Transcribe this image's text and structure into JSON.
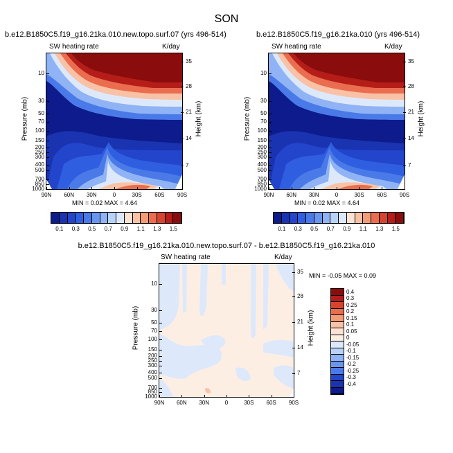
{
  "figure": {
    "title": "SON"
  },
  "panels": [
    {
      "title": "b.e12.B1850C5.f19_g16.21ka.010.new.topo.surf.07 (yrs 496-514)",
      "left_label": "SW heating rate",
      "right_label": "K/day",
      "ylabel": "Pressure (mb)",
      "y2label": "Height (km)",
      "minmax": "MIN =   0.02  MAX =   4.64"
    },
    {
      "title": "b.e12.B1850C5.f19_g16.21ka.010 (yrs 496-514)",
      "left_label": "SW heating rate",
      "right_label": "K/day",
      "ylabel": "Pressure (mb)",
      "y2label": "Height (km)",
      "minmax": "MIN =   0.02  MAX =   4.64"
    },
    {
      "title": "b.e12.B1850C5.f19_g16.21ka.010.new.topo.surf.07 - b.e12.B1850C5.f19_g16.21ka.010",
      "left_label": "SW heating rate",
      "right_label": "K/day",
      "ylabel": "Pressure (mb)",
      "y2label": "Height (km)",
      "minmax": "MIN =  -0.05  MAX =   0.09"
    }
  ],
  "chart_data": [
    {
      "type": "heatmap",
      "panel": "top-left",
      "x_ticks": [
        "90N",
        "60N",
        "30N",
        "0",
        "30S",
        "60S",
        "90S"
      ],
      "y_ticks_pressure": [
        "10",
        "30",
        "50",
        "70",
        "100",
        "150",
        "200",
        "250",
        "300",
        "400",
        "500",
        "700",
        "850",
        "1000"
      ],
      "y_ticks_height": [
        "35",
        "28",
        "21",
        "14",
        "7"
      ],
      "colorbar_levels": [
        0.1,
        0.2,
        0.3,
        0.4,
        0.5,
        0.6,
        0.7,
        0.8,
        0.9,
        1.0,
        1.1,
        1.2,
        1.3,
        1.4,
        1.5
      ],
      "colorbar_labels": [
        "0.1",
        "0.3",
        "0.5",
        "0.7",
        "0.9",
        "1.1",
        "1.3",
        "1.5"
      ],
      "colorbar_colors": [
        "#0d1b8c",
        "#1a33b0",
        "#2245cc",
        "#2f5ee0",
        "#4a7ae8",
        "#6b96ef",
        "#8fb3f4",
        "#b8d2f8",
        "#dde9fb",
        "#fde3d4",
        "#f9c2a6",
        "#f39c78",
        "#e96d4e",
        "#d6432f",
        "#b51d18",
        "#8a0c0c"
      ],
      "min": 0.02,
      "max": 4.64
    },
    {
      "type": "heatmap",
      "panel": "top-right",
      "x_ticks": [
        "90N",
        "60N",
        "30N",
        "0",
        "30S",
        "60S",
        "90S"
      ],
      "y_ticks_pressure": [
        "10",
        "30",
        "50",
        "70",
        "100",
        "150",
        "200",
        "250",
        "300",
        "400",
        "500",
        "700",
        "850",
        "1000"
      ],
      "y_ticks_height": [
        "35",
        "28",
        "21",
        "14",
        "7"
      ],
      "colorbar_levels": [
        0.1,
        0.2,
        0.3,
        0.4,
        0.5,
        0.6,
        0.7,
        0.8,
        0.9,
        1.0,
        1.1,
        1.2,
        1.3,
        1.4,
        1.5
      ],
      "colorbar_labels": [
        "0.1",
        "0.3",
        "0.5",
        "0.7",
        "0.9",
        "1.1",
        "1.3",
        "1.5"
      ],
      "colorbar_colors": [
        "#0d1b8c",
        "#1a33b0",
        "#2245cc",
        "#2f5ee0",
        "#4a7ae8",
        "#6b96ef",
        "#8fb3f4",
        "#b8d2f8",
        "#dde9fb",
        "#fde3d4",
        "#f9c2a6",
        "#f39c78",
        "#e96d4e",
        "#d6432f",
        "#b51d18",
        "#8a0c0c"
      ],
      "min": 0.02,
      "max": 4.64
    },
    {
      "type": "heatmap",
      "panel": "bottom-difference",
      "x_ticks": [
        "90N",
        "60N",
        "30N",
        "0",
        "30S",
        "60S",
        "90S"
      ],
      "y_ticks_pressure": [
        "10",
        "30",
        "50",
        "70",
        "100",
        "150",
        "200",
        "250",
        "300",
        "400",
        "500",
        "700",
        "850",
        "1000"
      ],
      "y_ticks_height": [
        "35",
        "28",
        "21",
        "14",
        "7"
      ],
      "colorbar_labels": [
        "0.4",
        "0.3",
        "0.25",
        "0.2",
        "0.15",
        "0.1",
        "0.05",
        "0",
        "-0.05",
        "-0.1",
        "-0.15",
        "-0.2",
        "-0.25",
        "-0.3",
        "-0.4"
      ],
      "colorbar_colors": [
        "#8a0c0c",
        "#b51d18",
        "#d6432f",
        "#e96d4e",
        "#f39c78",
        "#f9c2a6",
        "#fde3d4",
        "#fdeee4",
        "#dde9fb",
        "#b8d2f8",
        "#8fb3f4",
        "#6b96ef",
        "#4a7ae8",
        "#2245cc",
        "#1a33b0",
        "#0d1b8c"
      ],
      "min": -0.05,
      "max": 0.09
    }
  ]
}
